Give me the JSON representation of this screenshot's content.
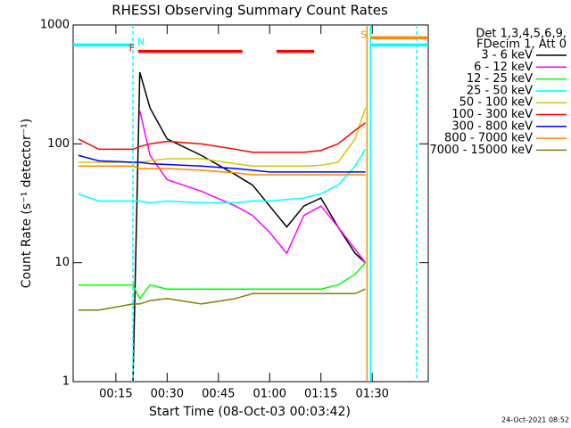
{
  "chart_data": {
    "type": "line",
    "title": "RHESSI Observing Summary Count Rates",
    "xlabel": "Start Time (08-Oct-03 00:03:42)",
    "ylabel": "Count Rate (s⁻¹ detector⁻¹)",
    "log_y": true,
    "xlim": [
      2.5,
      106.4
    ],
    "xticks": [
      {
        "value": 15,
        "label": "00:15"
      },
      {
        "value": 30,
        "label": "00:30"
      },
      {
        "value": 45,
        "label": "00:45"
      },
      {
        "value": 60,
        "label": "01:00"
      },
      {
        "value": 75,
        "label": "01:15"
      },
      {
        "value": 90,
        "label": "01:30"
      }
    ],
    "ylim": [
      1,
      1000
    ],
    "yticks": [
      1,
      10,
      100,
      1000
    ],
    "legend_title": [
      "Det 1,3,4,5,6,9,",
      "FDecim 1, Att 0"
    ],
    "legend": "right",
    "footer": "24-Oct-2021 08:52",
    "x": [
      4,
      10,
      20,
      22,
      25,
      30,
      40,
      50,
      55,
      60,
      65,
      70,
      75,
      80,
      85,
      88
    ],
    "series": [
      {
        "name": "3 - 6 keV",
        "color": "#000000",
        "values": [
          null,
          null,
          1,
          400,
          200,
          110,
          80,
          55,
          45,
          30,
          20,
          30,
          35,
          20,
          12,
          10
        ]
      },
      {
        "name": "6 - 12 keV",
        "color": "#ff00ff",
        "values": [
          null,
          null,
          null,
          190,
          80,
          50,
          40,
          30,
          25,
          18,
          12,
          25,
          30,
          20,
          13,
          10
        ]
      },
      {
        "name": "12 - 25 keV",
        "color": "#00ff00",
        "values": [
          6.5,
          6.5,
          6.5,
          5,
          6.5,
          6,
          6,
          6,
          6,
          6,
          6,
          6,
          6,
          6.5,
          8,
          10
        ]
      },
      {
        "name": "25 - 50 keV",
        "color": "#00ffff",
        "values": [
          38,
          33,
          33,
          33,
          32,
          33,
          32,
          32,
          33,
          33,
          34,
          35,
          38,
          45,
          65,
          90
        ]
      },
      {
        "name": "50 - 100 keV",
        "color": "#cccc00",
        "values": [
          70,
          70,
          70,
          70,
          72,
          75,
          75,
          68,
          65,
          65,
          65,
          65,
          66,
          70,
          110,
          200
        ]
      },
      {
        "name": "100 - 300 keV",
        "color": "#ff0000",
        "values": [
          110,
          90,
          90,
          95,
          100,
          105,
          100,
          90,
          85,
          85,
          85,
          85,
          88,
          100,
          130,
          150
        ]
      },
      {
        "name": "300 - 800 keV",
        "color": "#0000ff",
        "values": [
          80,
          72,
          70,
          70,
          68,
          67,
          65,
          62,
          60,
          58,
          58,
          58,
          58,
          58,
          58,
          58
        ]
      },
      {
        "name": "800 - 7000 keV",
        "color": "#ff8800",
        "values": [
          65,
          65,
          65,
          62,
          62,
          62,
          60,
          57,
          55,
          55,
          55,
          55,
          55,
          55,
          55,
          55
        ]
      },
      {
        "name": "7000 - 15000 keV",
        "color": "#808000",
        "values": [
          4,
          4,
          4.5,
          4.5,
          4.8,
          5,
          4.5,
          5,
          5.5,
          5.5,
          5.5,
          5.5,
          5.5,
          5.5,
          5.5,
          6
        ]
      }
    ],
    "vlines": [
      {
        "x": 20,
        "color": "#00ffff",
        "dash": true
      },
      {
        "x": 88.5,
        "color": "#ff8800",
        "dash": false
      },
      {
        "x": 89.5,
        "color": "#00ffff",
        "dash": false
      },
      {
        "x": 103,
        "color": "#00ffff",
        "dash": true
      }
    ],
    "flags": [
      {
        "label": "N",
        "color": "#00ffff",
        "level": 680,
        "intervals": [
          [
            2.5,
            20
          ],
          [
            89.5,
            106.4
          ]
        ]
      },
      {
        "label": "F",
        "color": "#ff0000",
        "level": 600,
        "intervals": [
          [
            21.5,
            52
          ],
          [
            62,
            73
          ]
        ]
      },
      {
        "label": "S",
        "color": "#ff8800",
        "level": 780,
        "intervals": [
          [
            89.5,
            106.4
          ]
        ]
      }
    ]
  }
}
